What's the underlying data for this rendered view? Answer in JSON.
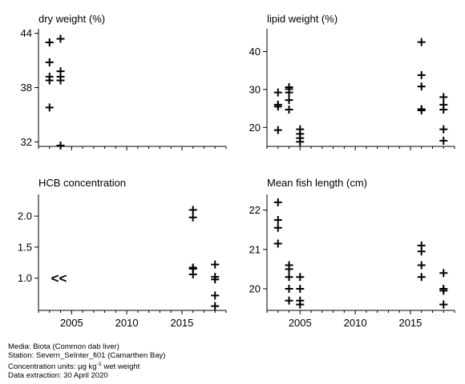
{
  "footer": {
    "media": "Media: Biota (Common dab liver)",
    "station": "Station: Severn_SeInter_fi01 (Camarthen Bay)",
    "units_prefix": "Concentration units: ",
    "units_mu": "µg kg",
    "units_sup": "-1",
    "units_suffix": " wet weight",
    "extraction": "Data extraction: 30 April 2020"
  },
  "chart_data": [
    {
      "type": "scatter",
      "title": "dry weight (%)",
      "xlim": [
        2002,
        2019
      ],
      "xticks": [
        2005,
        2010,
        2015
      ],
      "show_xtick_labels": false,
      "ylim": [
        31.5,
        44.5
      ],
      "yticks": [
        32,
        38,
        44
      ],
      "points": [
        [
          2003,
          43.0
        ],
        [
          2003,
          40.8
        ],
        [
          2003,
          39.2
        ],
        [
          2003,
          38.8
        ],
        [
          2003,
          35.8
        ],
        [
          2004,
          43.4
        ],
        [
          2004,
          39.8
        ],
        [
          2004,
          39.2
        ],
        [
          2004,
          38.8
        ],
        [
          2004,
          31.6
        ]
      ]
    },
    {
      "type": "scatter",
      "title": "lipid weight (%)",
      "xlim": [
        2002,
        2019
      ],
      "xticks": [
        2005,
        2010,
        2015
      ],
      "show_xtick_labels": false,
      "ylim": [
        15,
        46
      ],
      "yticks": [
        20,
        30,
        40
      ],
      "points": [
        [
          2003,
          29.2
        ],
        [
          2003,
          26.0
        ],
        [
          2003,
          25.5
        ],
        [
          2003,
          19.3
        ],
        [
          2004,
          30.6
        ],
        [
          2004,
          30.1
        ],
        [
          2004,
          29.2
        ],
        [
          2004,
          27.2
        ],
        [
          2004,
          24.7
        ],
        [
          2005,
          19.5
        ],
        [
          2005,
          18.3
        ],
        [
          2005,
          17.2
        ],
        [
          2005,
          16.2
        ],
        [
          2016,
          42.5
        ],
        [
          2016,
          33.8
        ],
        [
          2016,
          30.8
        ],
        [
          2016,
          24.8
        ],
        [
          2016,
          24.5
        ],
        [
          2018,
          28.0
        ],
        [
          2018,
          26.0
        ],
        [
          2018,
          24.7
        ],
        [
          2018,
          19.5
        ],
        [
          2018,
          16.5
        ]
      ]
    },
    {
      "type": "scatter",
      "title": "HCB concentration",
      "xlim": [
        2002,
        2019
      ],
      "xticks": [
        2005,
        2010,
        2015
      ],
      "show_xtick_labels": true,
      "ylim": [
        0.48,
        2.35
      ],
      "yticks": [
        1.0,
        1.5,
        2.0
      ],
      "ytick_labels": [
        "1.0",
        "1.5",
        "2.0"
      ],
      "less_than": {
        "x": 2004,
        "y": 1.0,
        "label": "<<"
      },
      "points": [
        [
          2016,
          2.1
        ],
        [
          2016,
          1.98
        ],
        [
          2016,
          1.17
        ],
        [
          2016,
          1.15
        ],
        [
          2016,
          1.06
        ],
        [
          2018,
          1.22
        ],
        [
          2018,
          1.02
        ],
        [
          2018,
          0.98
        ],
        [
          2018,
          0.72
        ],
        [
          2018,
          0.55
        ]
      ]
    },
    {
      "type": "scatter",
      "title": "Mean fish length (cm)",
      "xlim": [
        2002,
        2019
      ],
      "xticks": [
        2005,
        2010,
        2015
      ],
      "show_xtick_labels": true,
      "ylim": [
        19.45,
        22.4
      ],
      "yticks": [
        20,
        21,
        22
      ],
      "points": [
        [
          2003,
          22.2
        ],
        [
          2003,
          21.75
        ],
        [
          2003,
          21.55
        ],
        [
          2003,
          21.15
        ],
        [
          2004,
          20.6
        ],
        [
          2004,
          20.5
        ],
        [
          2004,
          20.3
        ],
        [
          2004,
          20.0
        ],
        [
          2004,
          19.7
        ],
        [
          2005,
          20.3
        ],
        [
          2005,
          20.0
        ],
        [
          2005,
          19.7
        ],
        [
          2005,
          19.6
        ],
        [
          2016,
          21.1
        ],
        [
          2016,
          20.95
        ],
        [
          2016,
          20.6
        ],
        [
          2016,
          20.3
        ],
        [
          2018,
          20.4
        ],
        [
          2018,
          20.0
        ],
        [
          2018,
          19.95
        ],
        [
          2018,
          19.6
        ]
      ]
    }
  ]
}
